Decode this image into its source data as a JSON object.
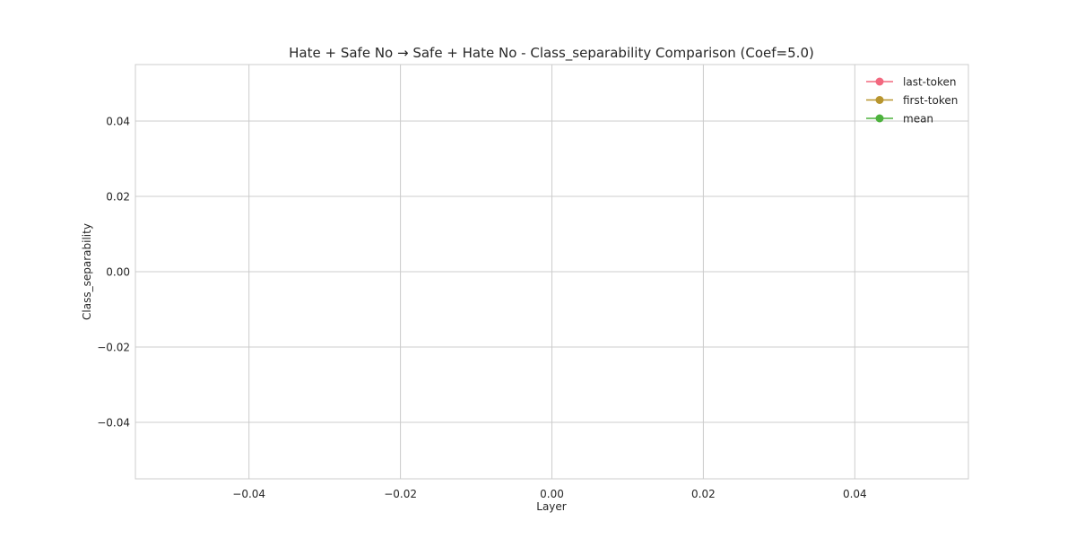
{
  "chart_data": {
    "type": "line",
    "title": "Hate + Safe No → Safe + Hate No - Class_separability Comparison (Coef=5.0)",
    "xlabel": "Layer",
    "ylabel": "Class_separability",
    "xlim": [
      -0.055,
      0.055
    ],
    "ylim": [
      -0.055,
      0.055
    ],
    "xticks": [
      -0.04,
      -0.02,
      0.0,
      0.02,
      0.04
    ],
    "yticks": [
      -0.04,
      -0.02,
      0.0,
      0.02,
      0.04
    ],
    "xtick_labels": [
      "−0.04",
      "−0.02",
      "0.00",
      "0.02",
      "0.04"
    ],
    "ytick_labels": [
      "−0.04",
      "−0.02",
      "0.00",
      "0.02",
      "0.04"
    ],
    "grid": true,
    "legend_position": "upper right",
    "series": [
      {
        "name": "last-token",
        "color": "#f2687f",
        "marker": "circle",
        "x": [],
        "y": []
      },
      {
        "name": "first-token",
        "color": "#b8952e",
        "marker": "circle",
        "x": [],
        "y": []
      },
      {
        "name": "mean",
        "color": "#4db23d",
        "marker": "circle",
        "x": [],
        "y": []
      }
    ]
  },
  "style": {
    "background": "#ffffff",
    "grid_color": "#cccccc",
    "spine_color": "#cccccc",
    "text_color": "#262626"
  }
}
